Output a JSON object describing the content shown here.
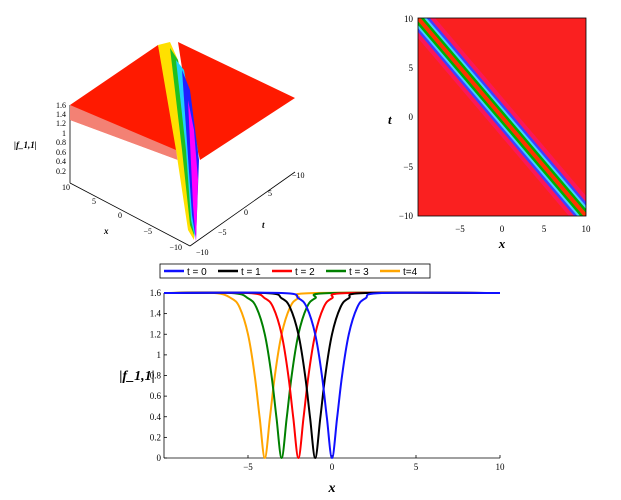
{
  "surface_plot": {
    "zlabel": "|f_1,1|",
    "xlabel": "x",
    "tlabel": "t",
    "z_ticks": [
      "1.6",
      "1.4",
      "1.2",
      "1",
      "0.8",
      "0.6",
      "0.4",
      "0.2"
    ],
    "x_ticks": [
      "10",
      "5",
      "0",
      "−5",
      "−10"
    ],
    "t_ticks": [
      "−10",
      "−5",
      "0",
      "5",
      "10"
    ]
  },
  "density_plot": {
    "xlabel": "x",
    "ylabel": "t",
    "x_ticks": [
      "−5",
      "0",
      "5",
      "10"
    ],
    "y_ticks": [
      "10",
      "5",
      "0",
      "−5",
      "−10"
    ],
    "colors": {
      "background": "#fa2020",
      "center": "#ff3300",
      "band1": "#00b000",
      "band2": "#40d0ff",
      "band3": "#4040ff",
      "edge": "#ff00ff"
    }
  },
  "chart_data": {
    "type": "line",
    "xlabel": "x",
    "ylabel": "|f_1,1|",
    "xlim": [
      -10,
      10
    ],
    "ylim": [
      0,
      1.6
    ],
    "x_ticks": [
      -5,
      0,
      5,
      10
    ],
    "y_ticks": [
      0,
      0.2,
      0.4,
      0.6,
      0.8,
      1,
      1.2,
      1.4,
      1.6
    ],
    "x_tick_labels": [
      "−5",
      "0",
      "5",
      "10"
    ],
    "y_tick_labels": [
      "0",
      "0.2",
      "0.4",
      "0.6",
      "0.8",
      "1",
      "1.2",
      "1.4",
      "1.6"
    ],
    "series": [
      {
        "name": "t = 0",
        "color": "#1010ff",
        "x": [
          -10,
          -3,
          -2,
          -1.5,
          -1,
          -0.6,
          -0.3,
          0,
          0.3,
          0.6,
          1,
          1.5,
          2,
          3,
          10
        ],
        "y": [
          1.6,
          1.6,
          1.55,
          1.46,
          1.2,
          0.8,
          0.38,
          0,
          0.38,
          0.8,
          1.2,
          1.46,
          1.55,
          1.6,
          1.6
        ]
      },
      {
        "name": "t = 1",
        "color": "#000000",
        "x": [
          -10,
          -4,
          -3,
          -2.5,
          -2,
          -1.6,
          -1.3,
          -1,
          -0.7,
          -0.4,
          0,
          0.5,
          1,
          2,
          10
        ],
        "y": [
          1.6,
          1.6,
          1.55,
          1.46,
          1.2,
          0.8,
          0.38,
          0,
          0.38,
          0.8,
          1.2,
          1.46,
          1.55,
          1.6,
          1.6
        ]
      },
      {
        "name": "t = 2",
        "color": "#ff0000",
        "x": [
          -10,
          -5,
          -4,
          -3.5,
          -3,
          -2.6,
          -2.3,
          -2,
          -1.7,
          -1.4,
          -1,
          -0.5,
          0,
          1,
          10
        ],
        "y": [
          1.6,
          1.6,
          1.55,
          1.46,
          1.2,
          0.8,
          0.38,
          0,
          0.38,
          0.8,
          1.2,
          1.46,
          1.55,
          1.6,
          1.6
        ]
      },
      {
        "name": "t = 3",
        "color": "#008000",
        "x": [
          -10,
          -6,
          -5,
          -4.5,
          -4,
          -3.6,
          -3.3,
          -3,
          -2.7,
          -2.4,
          -2,
          -1.5,
          -1,
          0,
          10
        ],
        "y": [
          1.6,
          1.6,
          1.55,
          1.46,
          1.2,
          0.8,
          0.38,
          0,
          0.38,
          0.8,
          1.2,
          1.46,
          1.55,
          1.6,
          1.6
        ]
      },
      {
        "name": "t=4",
        "color": "#ffa500",
        "x": [
          -10,
          -7,
          -6,
          -5.5,
          -5,
          -4.6,
          -4.3,
          -4,
          -3.7,
          -3.4,
          -3,
          -2.5,
          -2,
          -1,
          10
        ],
        "y": [
          1.6,
          1.6,
          1.55,
          1.46,
          1.2,
          0.8,
          0.38,
          0,
          0.38,
          0.8,
          1.2,
          1.46,
          1.55,
          1.6,
          1.6
        ]
      }
    ]
  }
}
